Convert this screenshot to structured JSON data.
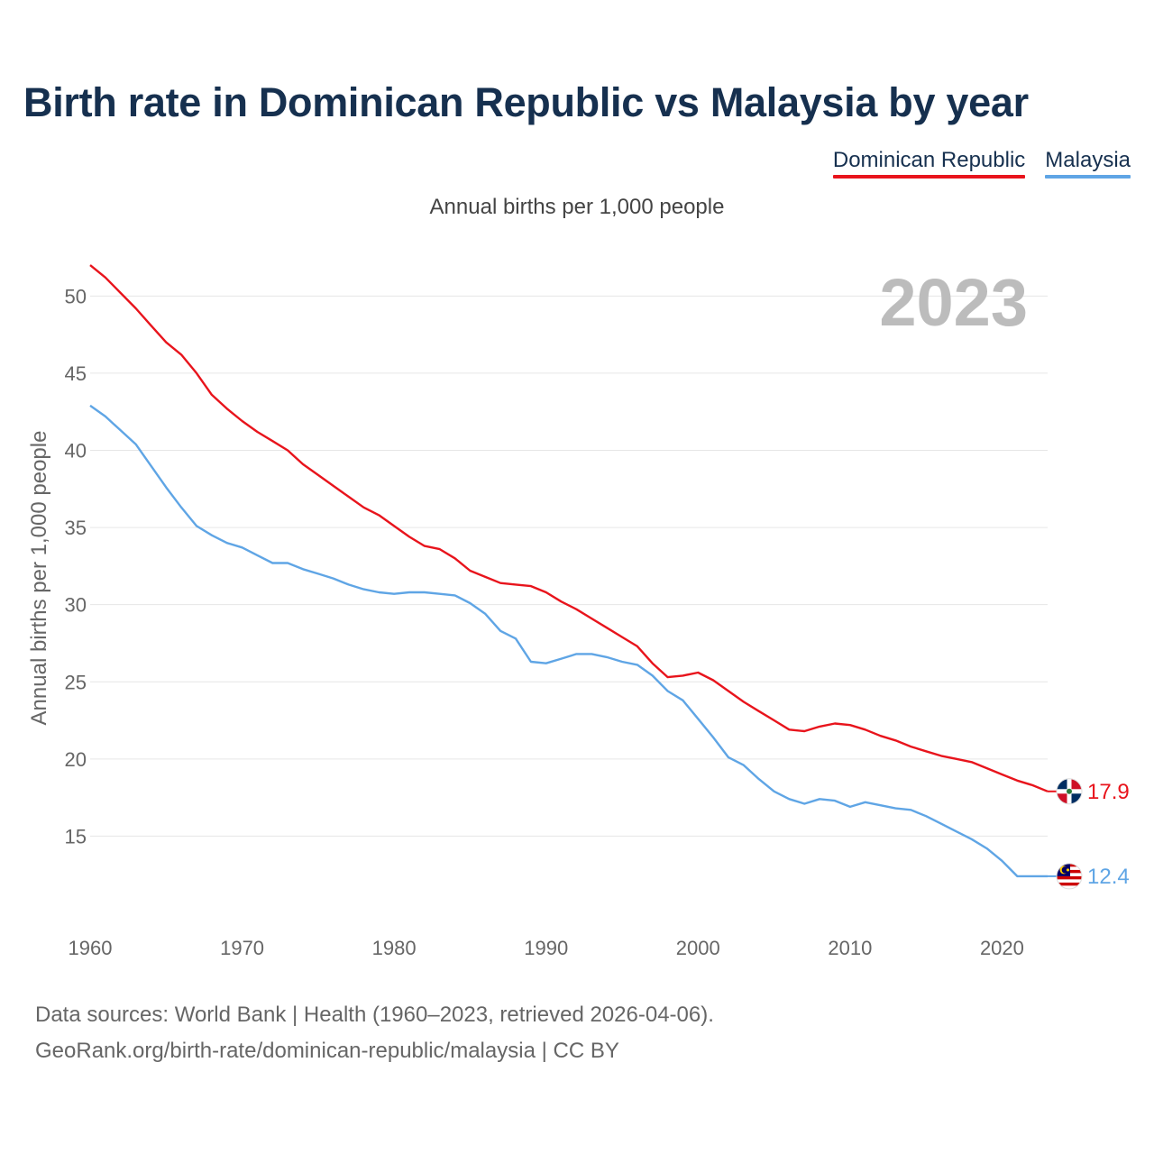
{
  "title": "Birth rate in Dominican Republic vs Malaysia by year",
  "subtitle": "Annual births per 1,000 people",
  "legend": [
    {
      "label": "Dominican Republic",
      "color": "#e8141c"
    },
    {
      "label": "Malaysia",
      "color": "#5fa5e5"
    }
  ],
  "footer": {
    "line1": "Data sources: World Bank | Health (1960–2023, retrieved 2026-04-06).",
    "line2": "GeoRank.org/birth-rate/dominican-republic/malaysia | CC BY"
  },
  "chart_data": {
    "type": "line",
    "title": "Birth rate in Dominican Republic vs Malaysia by year",
    "ylabel": "Annual births per 1,000 people",
    "xlabel": "",
    "year_label": "2023",
    "xlim": [
      1960,
      2023
    ],
    "ylim": [
      10,
      53
    ],
    "x_ticks": [
      1960,
      1970,
      1980,
      1990,
      2000,
      2010,
      2020
    ],
    "y_ticks": [
      15,
      20,
      25,
      30,
      35,
      40,
      45,
      50
    ],
    "grid": true,
    "legend_position": "top-right",
    "x": [
      1960,
      1961,
      1962,
      1963,
      1964,
      1965,
      1966,
      1967,
      1968,
      1969,
      1970,
      1971,
      1972,
      1973,
      1974,
      1975,
      1976,
      1977,
      1978,
      1979,
      1980,
      1981,
      1982,
      1983,
      1984,
      1985,
      1986,
      1987,
      1988,
      1989,
      1990,
      1991,
      1992,
      1993,
      1994,
      1995,
      1996,
      1997,
      1998,
      1999,
      2000,
      2001,
      2002,
      2003,
      2004,
      2005,
      2006,
      2007,
      2008,
      2009,
      2010,
      2011,
      2012,
      2013,
      2014,
      2015,
      2016,
      2017,
      2018,
      2019,
      2020,
      2021,
      2022,
      2023
    ],
    "series": [
      {
        "name": "Dominican Republic",
        "color": "#e8141c",
        "end_label": "17.9",
        "values": [
          52.0,
          51.2,
          50.2,
          49.2,
          48.1,
          47.0,
          46.2,
          45.0,
          43.6,
          42.7,
          41.9,
          41.2,
          40.6,
          40.0,
          39.1,
          38.4,
          37.7,
          37.0,
          36.3,
          35.8,
          35.1,
          34.4,
          33.8,
          33.6,
          33.0,
          32.2,
          31.8,
          31.4,
          31.3,
          31.2,
          30.8,
          30.2,
          29.7,
          29.1,
          28.5,
          27.9,
          27.3,
          26.2,
          25.3,
          25.4,
          25.6,
          25.1,
          24.4,
          23.7,
          23.1,
          22.5,
          21.9,
          21.8,
          22.1,
          22.3,
          22.2,
          21.9,
          21.5,
          21.2,
          20.8,
          20.5,
          20.2,
          20.0,
          19.8,
          19.4,
          19.0,
          18.6,
          18.3,
          17.9
        ]
      },
      {
        "name": "Malaysia",
        "color": "#5fa5e5",
        "end_label": "12.4",
        "values": [
          42.9,
          42.2,
          41.3,
          40.4,
          39.0,
          37.6,
          36.3,
          35.1,
          34.5,
          34.0,
          33.7,
          33.2,
          32.7,
          32.7,
          32.3,
          32.0,
          31.7,
          31.3,
          31.0,
          30.8,
          30.7,
          30.8,
          30.8,
          30.7,
          30.6,
          30.1,
          29.4,
          28.3,
          27.8,
          26.3,
          26.2,
          26.5,
          26.8,
          26.8,
          26.6,
          26.3,
          26.1,
          25.4,
          24.4,
          23.8,
          22.6,
          21.4,
          20.1,
          19.6,
          18.7,
          17.9,
          17.4,
          17.1,
          17.4,
          17.3,
          16.9,
          17.2,
          17.0,
          16.8,
          16.7,
          16.3,
          15.8,
          15.3,
          14.8,
          14.2,
          13.4,
          12.4,
          12.4,
          12.4
        ]
      }
    ]
  }
}
